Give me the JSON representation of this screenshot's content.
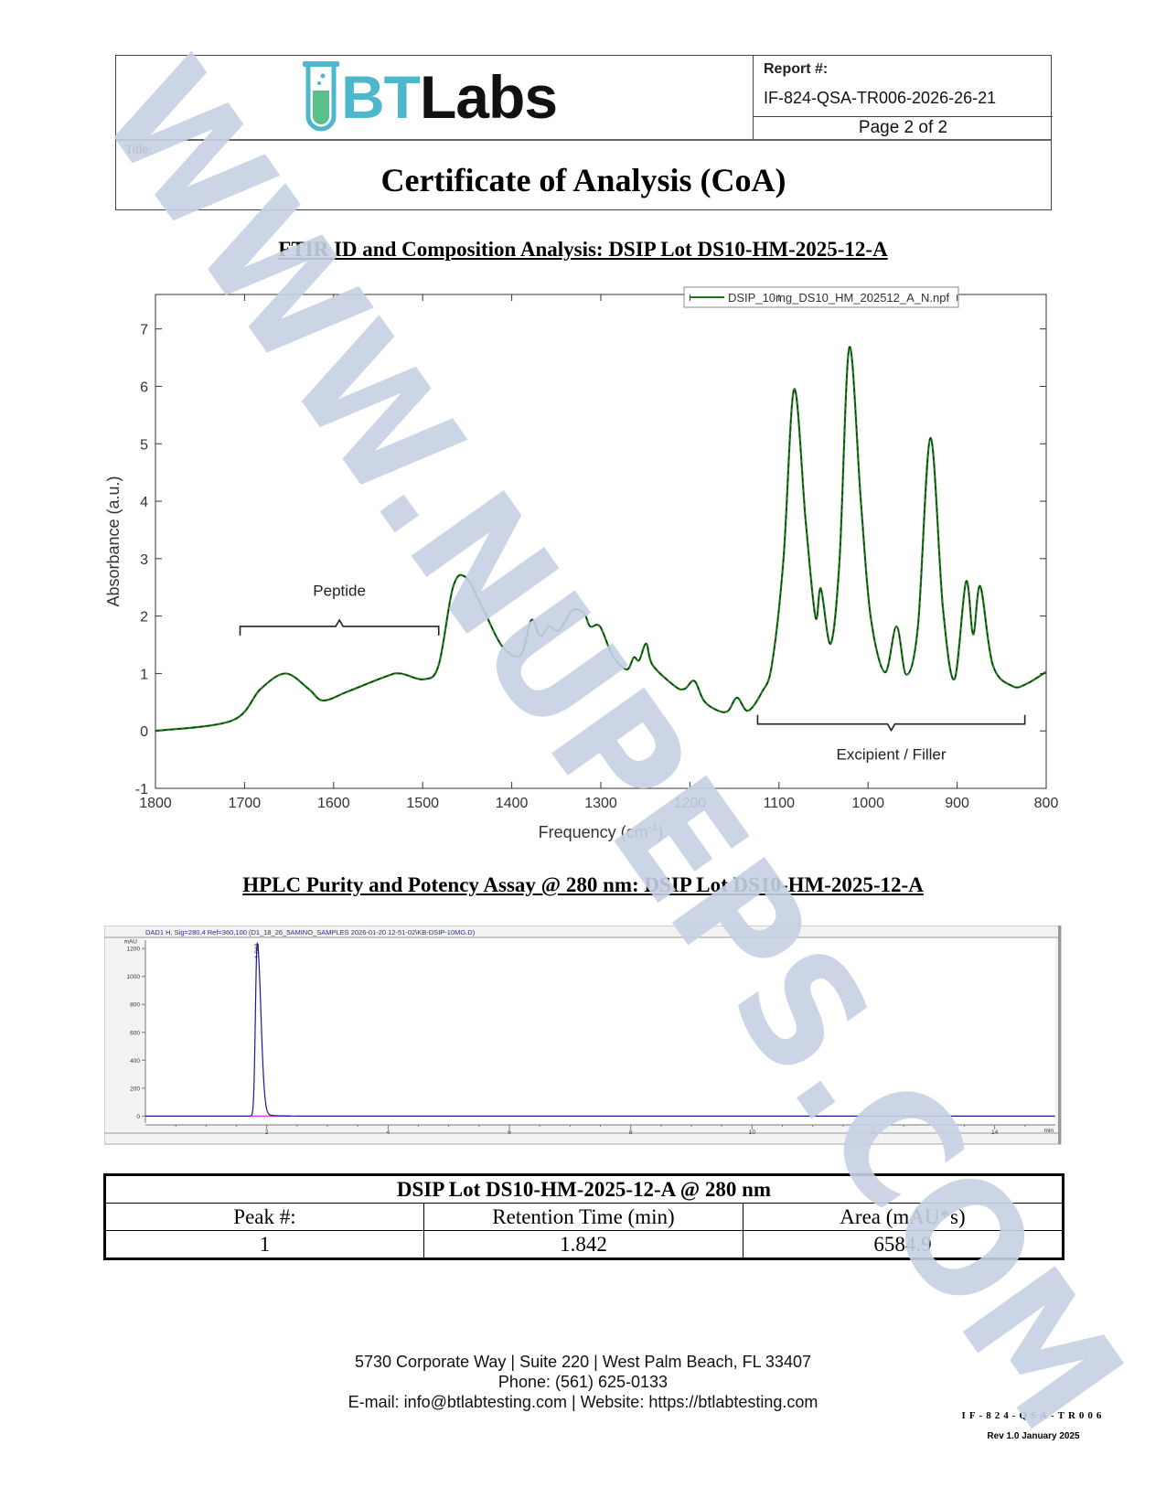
{
  "header": {
    "logo": {
      "bt": "BT",
      "labs": "Labs"
    },
    "report_label": "Report #:",
    "report_number": "IF-824-QSA-TR006-2026-26-21",
    "page": "Page 2 of 2",
    "title_label": "Title:",
    "title": "Certificate of Analysis (CoA)"
  },
  "ftir": {
    "section_title": "FTIR ID and Composition Analysis: DSIP Lot DS10-HM-2025-12-A"
  },
  "hplc": {
    "section_title": "HPLC Purity and Potency Assay @ 280 nm: DSIP Lot DS10-HM-2025-12-A"
  },
  "chart_data": [
    {
      "type": "line",
      "xlabel": "Frequency (cm",
      "xlabel_sup": "-1",
      "xlabel_end": ")",
      "ylabel": "Absorbance (a.u.)",
      "xlim": [
        1800,
        800
      ],
      "ylim": [
        -1,
        7.6
      ],
      "x_reversed": true,
      "xticks": [
        1800,
        1700,
        1600,
        1500,
        1400,
        1300,
        1200,
        1100,
        1000,
        900,
        800
      ],
      "yticks": [
        -1,
        0,
        1,
        2,
        3,
        4,
        5,
        6,
        7
      ],
      "grid": false,
      "legend": "top-right",
      "color": "#1a7a1a",
      "series": [
        {
          "name": "DSIP_10mg_DS10_HM_202512_A_N.npf",
          "x": [
            1800,
            1714,
            1682,
            1654,
            1628,
            1612,
            1585,
            1541,
            1525,
            1498,
            1482,
            1466,
            1452,
            1433,
            1411,
            1390,
            1378,
            1368,
            1358,
            1347,
            1332,
            1319,
            1312,
            1301,
            1287,
            1271,
            1263,
            1257,
            1249,
            1242,
            1217,
            1206,
            1195,
            1184,
            1168,
            1157,
            1147,
            1135,
            1119,
            1108,
            1095,
            1083,
            1070,
            1059,
            1053,
            1042,
            1032,
            1021,
            1008,
            997,
            981,
            968,
            957,
            944,
            930,
            916,
            903,
            890,
            882,
            874,
            860,
            838,
            822,
            800
          ],
          "y": [
            0,
            0.18,
            0.73,
            1.0,
            0.73,
            0.53,
            0.68,
            0.95,
            1.0,
            0.9,
            1.15,
            2.5,
            2.68,
            2.15,
            1.48,
            1.32,
            1.93,
            1.65,
            1.82,
            1.75,
            2.1,
            2.05,
            1.82,
            1.82,
            1.32,
            1.07,
            1.28,
            1.23,
            1.52,
            1.15,
            0.78,
            0.73,
            0.87,
            0.52,
            0.35,
            0.35,
            0.58,
            0.35,
            0.68,
            1.15,
            2.98,
            5.95,
            3.65,
            1.98,
            2.48,
            1.52,
            2.98,
            6.68,
            3.98,
            1.98,
            1.02,
            1.82,
            0.98,
            1.82,
            5.1,
            2.15,
            0.9,
            2.6,
            1.68,
            2.52,
            1.15,
            0.78,
            0.82,
            1.03
          ]
        }
      ],
      "annotations": [
        {
          "text": "Peptide",
          "from": 1705,
          "to": 1482,
          "y": 1.82,
          "label_y": 2.45
        },
        {
          "text": "Excipient / Filler",
          "from": 1124,
          "to": 824,
          "y": 0.12,
          "label_y": -0.4
        }
      ]
    },
    {
      "type": "line",
      "title": "DAD1 H, Sig=280,4 Ref=360,100 (D1_18_26_5AMINO_SAMPLES 2026-01-20 12-51-02\\KB-DSIP-10MG.D)",
      "ylabel": "mAU",
      "xlabel": "min",
      "xlim": [
        0,
        15
      ],
      "ylim": [
        -50,
        1260
      ],
      "xticks": [
        2,
        4,
        6,
        8,
        10,
        12,
        14
      ],
      "yticks": [
        0,
        200,
        400,
        600,
        800,
        1000,
        1200
      ],
      "grid": false,
      "color": "#1a1a9a",
      "baseline_color": "#e040e0",
      "peaks": [
        {
          "label": "1.842",
          "rt": 1.842,
          "height": 1235
        }
      ]
    }
  ],
  "results_table": {
    "caption": "DSIP Lot DS10-HM-2025-12-A @ 280 nm",
    "columns": [
      "Peak #:",
      "Retention Time (min)",
      "Area (mAU*s)"
    ],
    "rows": [
      [
        "1",
        "1.842",
        "6584.9"
      ]
    ]
  },
  "footer": {
    "address": "5730 Corporate Way | Suite 220 | West Palm Beach, FL 33407",
    "phone": "Phone: (561) 625-0133",
    "contact": "E-mail: info@btlabtesting.com | Website: https://btlabtesting.com",
    "form_code": "IF-824-QSA-TR006",
    "revision": "Rev 1.0 January 2025"
  },
  "watermark": "WWW.NUPEPS.COM"
}
